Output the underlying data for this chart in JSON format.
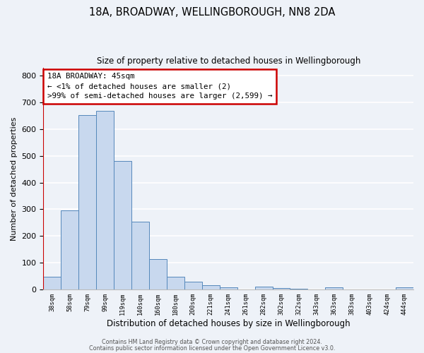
{
  "title": "18A, BROADWAY, WELLINGBOROUGH, NN8 2DA",
  "subtitle": "Size of property relative to detached houses in Wellingborough",
  "xlabel": "Distribution of detached houses by size in Wellingborough",
  "ylabel": "Number of detached properties",
  "bin_labels": [
    "38sqm",
    "58sqm",
    "79sqm",
    "99sqm",
    "119sqm",
    "140sqm",
    "160sqm",
    "180sqm",
    "200sqm",
    "221sqm",
    "241sqm",
    "261sqm",
    "282sqm",
    "302sqm",
    "322sqm",
    "343sqm",
    "363sqm",
    "383sqm",
    "403sqm",
    "424sqm",
    "444sqm"
  ],
  "bar_heights": [
    47,
    295,
    652,
    667,
    480,
    254,
    114,
    48,
    28,
    15,
    8,
    0,
    10,
    5,
    4,
    0,
    8,
    0,
    0,
    0,
    8
  ],
  "bar_color": "#c8d8ee",
  "bar_edge_color": "#5588bb",
  "annotation_title": "18A BROADWAY: 45sqm",
  "annotation_line1": "← <1% of detached houses are smaller (2)",
  "annotation_line2": ">99% of semi-detached houses are larger (2,599) →",
  "annotation_box_color": "#ffffff",
  "annotation_box_edge_color": "#cc0000",
  "ylim": [
    0,
    830
  ],
  "yticks": [
    0,
    100,
    200,
    300,
    400,
    500,
    600,
    700,
    800
  ],
  "footer1": "Contains HM Land Registry data © Crown copyright and database right 2024.",
  "footer2": "Contains public sector information licensed under the Open Government Licence v3.0.",
  "bg_color": "#eef2f8",
  "grid_color": "#ffffff"
}
